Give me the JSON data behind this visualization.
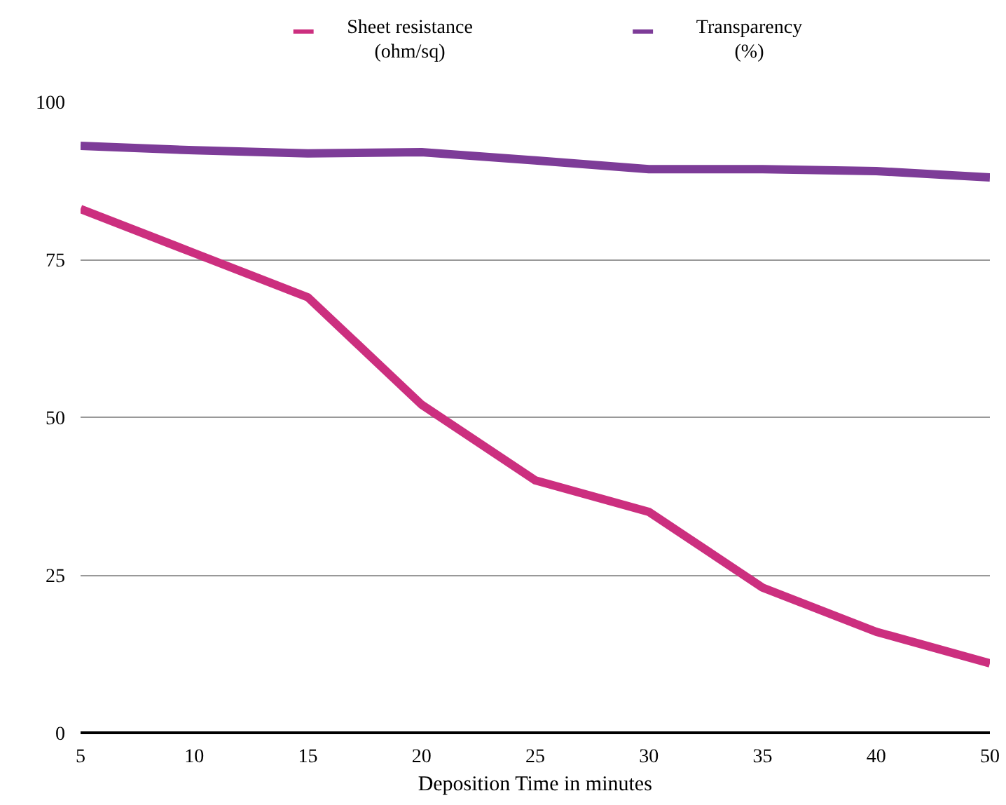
{
  "chart_data": {
    "type": "line",
    "xlabel": "Deposition Time in minutes",
    "categories": [
      "5",
      "10",
      "15",
      "20",
      "25",
      "30",
      "35",
      "40",
      "50"
    ],
    "series": [
      {
        "name": "Sheet resistance\n(ohm/sq)",
        "color": "#cc2f7f",
        "values": [
          83,
          76,
          69,
          52,
          40,
          35,
          23,
          16,
          11
        ]
      },
      {
        "name": "Transparency\n(%)",
        "color": "#7d3c98",
        "values": [
          93,
          92.3,
          91.8,
          92,
          90.7,
          89.3,
          89.3,
          89,
          88
        ]
      }
    ],
    "ylim": [
      0,
      100
    ],
    "yticks": [
      0,
      25,
      50,
      75,
      100
    ],
    "grid": "y",
    "legend": "top",
    "marker": "none",
    "line_style": "solid"
  }
}
